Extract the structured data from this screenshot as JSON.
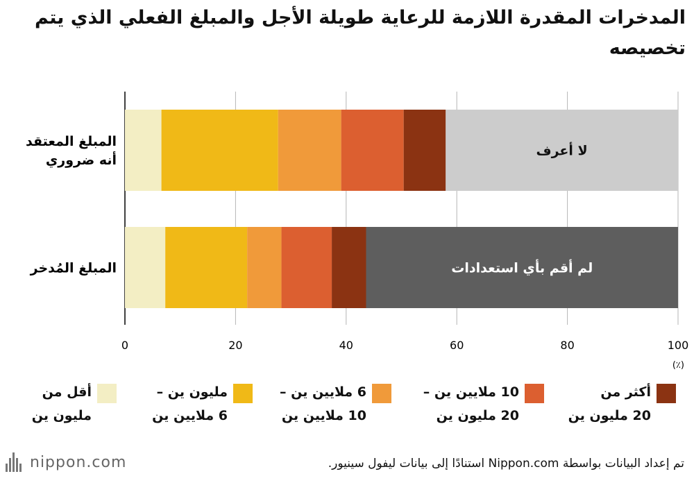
{
  "title": "المدخرات المقدرة اللازمة للرعاية طويلة الأجل والمبلغ الفعلي الذي يتم تخصيصه",
  "source": "تم إعداد البيانات بواسطة Nippon.com استنادًا إلى بيانات ليفول سينيور.",
  "logo": "nippon.com",
  "colors": {
    "less_1m": "#F3EEC4",
    "m1_6": "#F0B917",
    "m6_10": "#F09A3A",
    "m10_20": "#DC5F30",
    "over_20": "#8B3312",
    "dont_know": "#CCCCCC",
    "no_prep": "#5E5E5E"
  },
  "chart_data": {
    "type": "bar",
    "orientation": "horizontal",
    "stacked": true,
    "title": "المدخرات المقدرة اللازمة للرعاية طويلة الأجل والمبلغ الفعلي الذي يتم تخصيصه",
    "categories": [
      "المبلغ المعتقد أنه ضروري",
      "المبلغ المُدخر"
    ],
    "xlim": [
      0,
      100
    ],
    "xticks": [
      "0",
      "20",
      "40",
      "60",
      "80",
      "100"
    ],
    "xunit": "(٪)",
    "grid": true,
    "legend_position": "bottom",
    "series": [
      {
        "key": "less_1m",
        "name": "أقل من مليون ين",
        "values": [
          6.6,
          7.3
        ]
      },
      {
        "key": "m1_6",
        "name": "مليون ين – 6 ملايين ين",
        "values": [
          21.1,
          14.8
        ]
      },
      {
        "key": "m6_10",
        "name": "6 ملايين ين – 10 ملايين ين",
        "values": [
          11.4,
          6.2
        ]
      },
      {
        "key": "m10_20",
        "name": "10 ملايين ين – 20 مليون ين",
        "values": [
          11.3,
          9.1
        ]
      },
      {
        "key": "over_20",
        "name": "أكثر من 20 مليون ين",
        "values": [
          7.6,
          6.2
        ]
      },
      {
        "key": "dont_know",
        "name": "",
        "label": "لا أعرف",
        "values": [
          42.0,
          0
        ]
      },
      {
        "key": "no_prep",
        "name": "",
        "label": "لم أقم بأي استعدادات",
        "values": [
          0,
          56.4
        ]
      }
    ]
  }
}
